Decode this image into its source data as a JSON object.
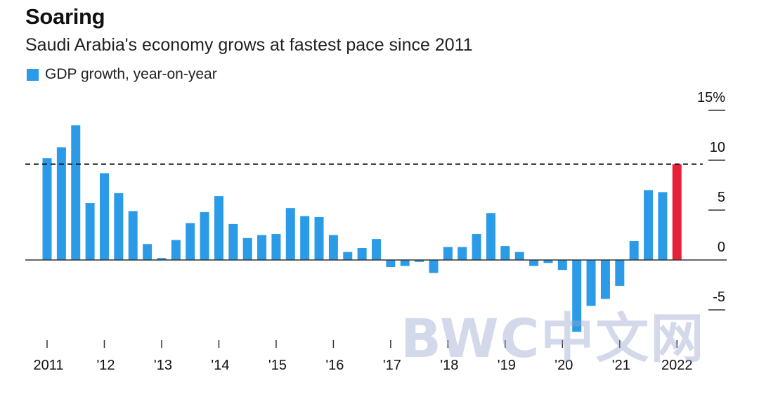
{
  "chart_data": {
    "type": "bar",
    "title": "Soaring",
    "subtitle": "Saudi Arabia's economy grows at fastest pace since 2011",
    "legend": {
      "entries": [
        "GDP growth, year-on-year"
      ],
      "placement": "top-left"
    },
    "ylim": [
      -8,
      15
    ],
    "y_ticks": [
      {
        "value": 15,
        "label": "15%"
      },
      {
        "value": 10,
        "label": "10"
      },
      {
        "value": 5,
        "label": "5"
      },
      {
        "value": 0,
        "label": "0"
      },
      {
        "value": -5,
        "label": "-5"
      }
    ],
    "x_ticks": [
      "2011",
      "'12",
      "'13",
      "'14",
      "'15",
      "'16",
      "'17",
      "'18",
      "'19",
      "'20",
      "'21",
      "2022"
    ],
    "reference_line": {
      "value": 9.6,
      "style": "dashed"
    },
    "colors": {
      "bar": "#2b9be8",
      "highlight": "#e8213a",
      "axis": "#333333",
      "reference": "#111111"
    },
    "series": [
      {
        "name": "GDP growth, year-on-year",
        "quarters": [
          "2011 Q1",
          "2011 Q2",
          "2011 Q3",
          "2011 Q4",
          "2012 Q1",
          "2012 Q2",
          "2012 Q3",
          "2012 Q4",
          "2013 Q1",
          "2013 Q2",
          "2013 Q3",
          "2013 Q4",
          "2014 Q1",
          "2014 Q2",
          "2014 Q3",
          "2014 Q4",
          "2015 Q1",
          "2015 Q2",
          "2015 Q3",
          "2015 Q4",
          "2016 Q1",
          "2016 Q2",
          "2016 Q3",
          "2016 Q4",
          "2017 Q1",
          "2017 Q2",
          "2017 Q3",
          "2017 Q4",
          "2018 Q1",
          "2018 Q2",
          "2018 Q3",
          "2018 Q4",
          "2019 Q1",
          "2019 Q2",
          "2019 Q3",
          "2019 Q4",
          "2020 Q1",
          "2020 Q2",
          "2020 Q3",
          "2020 Q4",
          "2021 Q1",
          "2021 Q2",
          "2021 Q3",
          "2021 Q4",
          "2022 Q1"
        ],
        "values": [
          10.2,
          11.3,
          13.5,
          5.7,
          8.7,
          6.7,
          4.9,
          1.6,
          0.2,
          2.0,
          3.7,
          4.8,
          6.4,
          3.6,
          2.2,
          2.5,
          2.6,
          5.2,
          4.4,
          4.3,
          2.5,
          0.8,
          1.2,
          2.1,
          -0.7,
          -0.6,
          -0.2,
          -1.3,
          1.3,
          1.3,
          2.6,
          4.7,
          1.4,
          0.8,
          -0.6,
          -0.3,
          -1.0,
          -7.2,
          -4.6,
          -3.9,
          -2.6,
          1.9,
          7.0,
          6.8,
          9.6
        ],
        "highlight_index": 44
      }
    ]
  },
  "watermark": "BWC中文网"
}
